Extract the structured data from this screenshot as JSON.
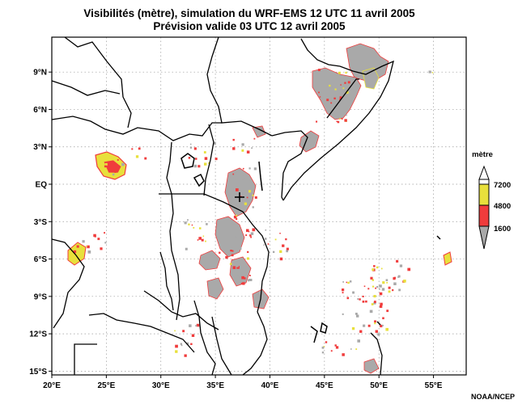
{
  "title": {
    "line1": "Visibilités (mètre), simulation du WRF-EMS 12 UTC 11 avril 2005",
    "line2": "Prévision valide 03 UTC 12 avril 2005"
  },
  "credit": "NOAA/NCEP",
  "map": {
    "lon_range": [
      20,
      58
    ],
    "lat_range": [
      -15.3,
      11.8
    ],
    "lon_ticks": [
      {
        "value": 20,
        "label": "20°E"
      },
      {
        "value": 25,
        "label": "25°E"
      },
      {
        "value": 30,
        "label": "30°E"
      },
      {
        "value": 35,
        "label": "35°E"
      },
      {
        "value": 40,
        "label": "40°E"
      },
      {
        "value": 45,
        "label": "45°E"
      },
      {
        "value": 50,
        "label": "50°E"
      },
      {
        "value": 55,
        "label": "55°E"
      }
    ],
    "lat_ticks": [
      {
        "value": 9,
        "label": "9°N"
      },
      {
        "value": 6,
        "label": "6°N"
      },
      {
        "value": 3,
        "label": "3°N"
      },
      {
        "value": 0,
        "label": "EQ"
      },
      {
        "value": -3,
        "label": "3°S"
      },
      {
        "value": -6,
        "label": "6°S"
      },
      {
        "value": -9,
        "label": "9°S"
      },
      {
        "value": -12,
        "label": "12°S"
      },
      {
        "value": -15,
        "label": "15°S"
      }
    ],
    "grid": true
  },
  "legend": {
    "title": "mètre",
    "levels": [
      "7200",
      "4800",
      "1600"
    ],
    "colors": {
      "gray": "#a9a9a9",
      "red": "#f03c3c",
      "yellow": "#e8e03c",
      "white": "#ffffff"
    }
  }
}
